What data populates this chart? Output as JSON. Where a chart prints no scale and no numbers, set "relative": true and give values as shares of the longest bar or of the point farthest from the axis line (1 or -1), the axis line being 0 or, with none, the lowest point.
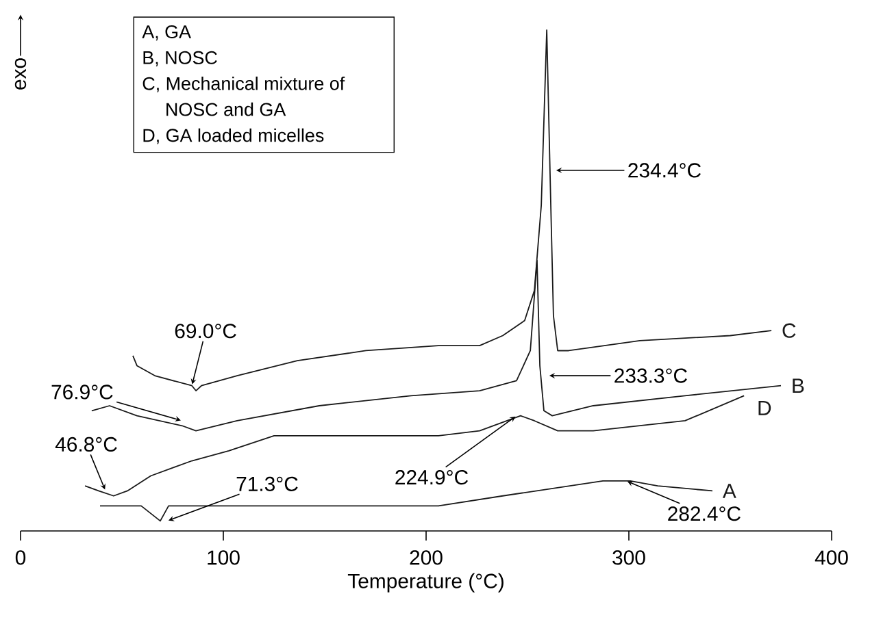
{
  "chart_data": {
    "type": "line",
    "relative": true,
    "xlabel": "Temperature (°C)",
    "ylabel": "exo",
    "xlim": [
      0,
      400
    ],
    "xticks": [
      0,
      100,
      200,
      300,
      400
    ],
    "series": [
      {
        "name": "A",
        "color": "#1a1a1a",
        "x": [
          39.2,
          59.5,
          68.9,
          73,
          206.1,
          237.8,
          287.2,
          300.7,
          314.2,
          341.2
        ],
        "values": [
          0.05,
          0.05,
          0.02,
          0.05,
          0.05,
          0.07,
          0.1,
          0.1,
          0.09,
          0.08
        ]
      },
      {
        "name": "B",
        "color": "#1a1a1a",
        "x": [
          35.1,
          43.9,
          57.4,
          79.7,
          86.5,
          106.8,
          147.3,
          192.6,
          226.4,
          244.6,
          251.4,
          254.7,
          256.1,
          258.1,
          262.2,
          282.4,
          327.7,
          375
        ],
        "values": [
          0.24,
          0.25,
          0.23,
          0.21,
          0.2,
          0.22,
          0.25,
          0.27,
          0.28,
          0.3,
          0.36,
          0.54,
          0.33,
          0.24,
          0.23,
          0.25,
          0.27,
          0.29
        ]
      },
      {
        "name": "C",
        "color": "#1a1a1a",
        "x": [
          55.4,
          57.4,
          66.2,
          84.5,
          86.5,
          89.2,
          106.8,
          136.5,
          170.3,
          206.1,
          226.4,
          237.8,
          248.6,
          253.4,
          256.8,
          259.5,
          261.5,
          262.8,
          264.9,
          270.3,
          305.4,
          350,
          370.3
        ],
        "values": [
          0.35,
          0.33,
          0.31,
          0.29,
          0.28,
          0.29,
          0.31,
          0.34,
          0.36,
          0.37,
          0.37,
          0.39,
          0.42,
          0.48,
          0.65,
          1.0,
          0.65,
          0.43,
          0.36,
          0.36,
          0.38,
          0.39,
          0.4
        ]
      },
      {
        "name": "D",
        "color": "#1a1a1a",
        "x": [
          31.8,
          38.5,
          45.9,
          52.7,
          64.2,
          84.5,
          102.7,
          125,
          170.3,
          206.1,
          226.4,
          239.9,
          246.6,
          253.4,
          264.9,
          282.4,
          327.7,
          356.8
        ],
        "values": [
          0.09,
          0.08,
          0.07,
          0.08,
          0.11,
          0.14,
          0.16,
          0.19,
          0.19,
          0.19,
          0.2,
          0.22,
          0.23,
          0.22,
          0.2,
          0.2,
          0.22,
          0.27
        ]
      }
    ],
    "annotations": [
      "A, GA",
      "B, NOSC",
      "C, Mechanical mixture of NOSC and GA",
      "D, GA loaded micelles",
      {
        "text": "69.0°C",
        "x": 84.5,
        "y": 0.29
      },
      {
        "text": "76.9°C",
        "x": 79.7,
        "y": 0.22
      },
      {
        "text": "46.8°C",
        "x": 41.9,
        "y": 0.08
      },
      {
        "text": "71.3°C",
        "x": 72.3,
        "y": 0.02
      },
      {
        "text": "224.9°C",
        "x": 244.6,
        "y": 0.23
      },
      {
        "text": "233.3°C",
        "x": 260.1,
        "y": 0.31
      },
      {
        "text": "234.4°C",
        "x": 263.5,
        "y": 0.72
      },
      {
        "text": "282.4°C",
        "x": 298.6,
        "y": 0.1
      }
    ]
  }
}
